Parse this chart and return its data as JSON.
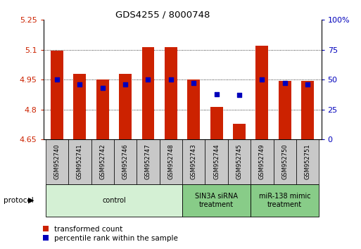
{
  "title": "GDS4255 / 8000748",
  "samples": [
    "GSM952740",
    "GSM952741",
    "GSM952742",
    "GSM952746",
    "GSM952747",
    "GSM952748",
    "GSM952743",
    "GSM952744",
    "GSM952745",
    "GSM952749",
    "GSM952750",
    "GSM952751"
  ],
  "bar_bottom": 4.65,
  "bar_tops": [
    5.095,
    4.978,
    4.95,
    4.978,
    5.115,
    5.115,
    4.95,
    4.815,
    4.73,
    5.12,
    4.945,
    4.945
  ],
  "percentile_pct": [
    50,
    46,
    43,
    46,
    50,
    50,
    47,
    38,
    37,
    50,
    47,
    46
  ],
  "ylim_left": [
    4.65,
    5.25
  ],
  "ylim_right": [
    0,
    100
  ],
  "yticks_left": [
    4.65,
    4.8,
    4.95,
    5.1,
    5.25
  ],
  "ytick_labels_left": [
    "4.65",
    "4.8",
    "4.95",
    "5.1",
    "5.25"
  ],
  "yticks_right_pct": [
    0,
    25,
    50,
    75,
    100
  ],
  "ytick_labels_right": [
    "0",
    "25",
    "50",
    "75",
    "100%"
  ],
  "bar_color": "#cc2200",
  "dot_color": "#0000bb",
  "bar_width": 0.55,
  "grid_yticks": [
    4.8,
    4.95,
    5.1
  ],
  "groups": [
    {
      "label": "control",
      "start": 0,
      "end": 5,
      "color": "#d4f0d4"
    },
    {
      "label": "SIN3A siRNA\ntreatment",
      "start": 6,
      "end": 8,
      "color": "#88cc88"
    },
    {
      "label": "miR-138 mimic\ntreatment",
      "start": 9,
      "end": 11,
      "color": "#88cc88"
    }
  ],
  "legend_items": [
    {
      "color": "#cc2200",
      "label": "transformed count"
    },
    {
      "color": "#0000bb",
      "label": "percentile rank within the sample"
    }
  ],
  "protocol_label": "protocol",
  "sample_box_color": "#c8c8c8",
  "title_color": "#000000",
  "left_axis_color": "#cc2200",
  "right_axis_color": "#0000bb"
}
